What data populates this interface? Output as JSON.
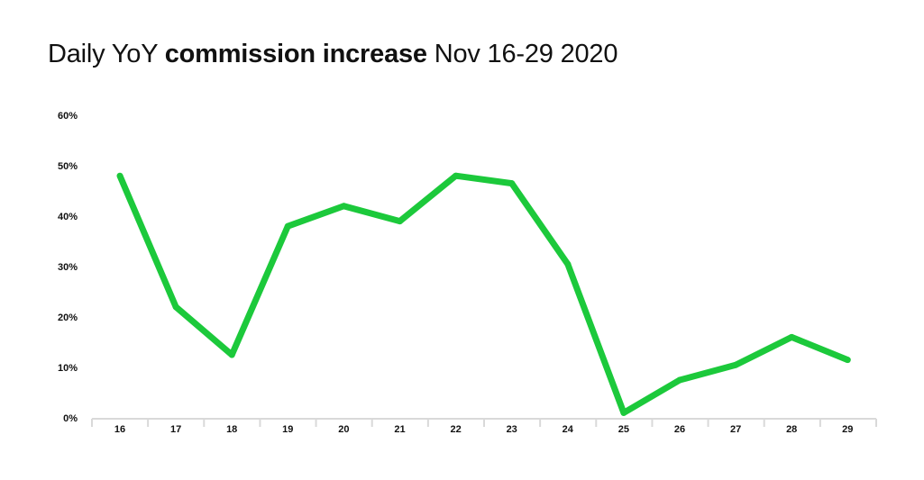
{
  "title": {
    "prefix": "Daily YoY ",
    "emphasis": "commission increase",
    "suffix": " Nov 16-29 2020"
  },
  "chart_data": {
    "type": "line",
    "title": "Daily YoY commission increase Nov 16-29 2020",
    "xlabel": "",
    "ylabel": "",
    "x": [
      "16",
      "17",
      "18",
      "19",
      "20",
      "21",
      "22",
      "23",
      "24",
      "25",
      "26",
      "27",
      "28",
      "29"
    ],
    "series": [
      {
        "values": [
          48,
          22,
          12.5,
          38,
          42,
          39,
          48,
          46.5,
          30.5,
          1,
          7.5,
          10.5,
          16,
          11.5
        ]
      }
    ],
    "ylim": [
      0,
      60
    ],
    "yticks": [
      0,
      10,
      20,
      30,
      40,
      50,
      60
    ],
    "ytick_labels": [
      "0%",
      "10%",
      "20%",
      "30%",
      "40%",
      "50%",
      "60%"
    ],
    "grid": false,
    "line_color": "#1cc93b",
    "axis_color": "#d9d9d9"
  }
}
